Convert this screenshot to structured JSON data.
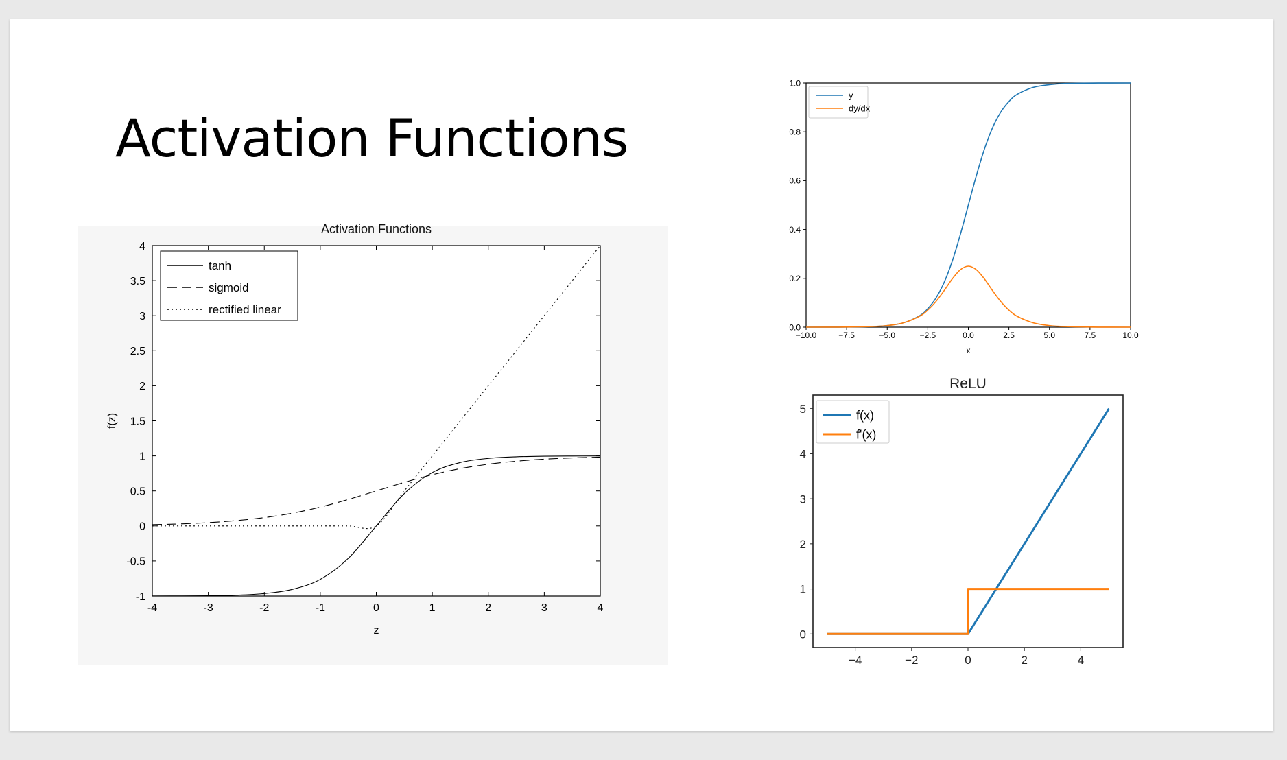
{
  "slide": {
    "title": "Activation Functions"
  },
  "chart_data": [
    {
      "type": "line",
      "title": "Activation Functions",
      "xlabel": "z",
      "ylabel": "f(z)",
      "xlim": [
        -4,
        4
      ],
      "ylim": [
        -1,
        4
      ],
      "xticks": [
        -4,
        -3,
        -2,
        -1,
        0,
        1,
        2,
        3,
        4
      ],
      "yticks": [
        -1,
        -0.5,
        0,
        0.5,
        1,
        1.5,
        2,
        2.5,
        3,
        3.5,
        4
      ],
      "ytick_labels": [
        "-1",
        "-0.5",
        "0",
        "0.5",
        "1",
        "1.5",
        "2",
        "2.5",
        "3",
        "3.5",
        "4"
      ],
      "legend_position": "top-left",
      "grid": false,
      "x": [
        -4,
        -3.5,
        -3,
        -2.5,
        -2,
        -1.5,
        -1,
        -0.5,
        0,
        0.5,
        1,
        1.5,
        2,
        2.5,
        3,
        3.5,
        4
      ],
      "series": [
        {
          "name": "tanh",
          "style": "solid",
          "color": "#000000",
          "values": [
            -0.999,
            -0.998,
            -0.995,
            -0.987,
            -0.964,
            -0.905,
            -0.762,
            -0.462,
            0,
            0.462,
            0.762,
            0.905,
            0.964,
            0.987,
            0.995,
            0.998,
            0.999
          ]
        },
        {
          "name": "sigmoid",
          "style": "dashed",
          "color": "#000000",
          "values": [
            0.018,
            0.029,
            0.047,
            0.076,
            0.119,
            0.182,
            0.269,
            0.378,
            0.5,
            0.622,
            0.731,
            0.818,
            0.881,
            0.924,
            0.953,
            0.971,
            0.982
          ]
        },
        {
          "name": "rectified linear",
          "style": "dotted",
          "color": "#000000",
          "values": [
            0,
            0,
            0,
            0,
            0,
            0,
            0,
            0,
            0,
            0.5,
            1,
            1.5,
            2,
            2.5,
            3,
            3.5,
            4
          ]
        }
      ]
    },
    {
      "type": "line",
      "title": "",
      "xlabel": "x",
      "ylabel": "",
      "xlim": [
        -10,
        10
      ],
      "ylim": [
        0,
        1
      ],
      "xticks": [
        -10,
        -7.5,
        -5,
        -2.5,
        0,
        2.5,
        5,
        7.5,
        10
      ],
      "xtick_labels": [
        "−10.0",
        "−7.5",
        "−5.0",
        "−2.5",
        "0.0",
        "2.5",
        "5.0",
        "7.5",
        "10.0"
      ],
      "yticks": [
        0,
        0.2,
        0.4,
        0.6,
        0.8,
        1
      ],
      "ytick_labels": [
        "0.0",
        "0.2",
        "0.4",
        "0.6",
        "0.8",
        "1.0"
      ],
      "legend_position": "top-left",
      "grid": false,
      "x": [
        -10,
        -8,
        -6,
        -5,
        -4,
        -3,
        -2.5,
        -2,
        -1.5,
        -1,
        -0.5,
        0,
        0.5,
        1,
        1.5,
        2,
        2.5,
        3,
        4,
        5,
        6,
        8,
        10
      ],
      "series": [
        {
          "name": "y",
          "color": "#1f77b4",
          "values": [
            0.0,
            0.0003,
            0.0025,
            0.0067,
            0.018,
            0.047,
            0.076,
            0.119,
            0.182,
            0.269,
            0.378,
            0.5,
            0.622,
            0.731,
            0.818,
            0.881,
            0.924,
            0.953,
            0.982,
            0.993,
            0.998,
            0.9997,
            1.0
          ]
        },
        {
          "name": "dy/dx",
          "color": "#ff7f0e",
          "values": [
            0.0,
            0.0003,
            0.0025,
            0.0066,
            0.018,
            0.045,
            0.07,
            0.105,
            0.149,
            0.197,
            0.235,
            0.25,
            0.235,
            0.197,
            0.149,
            0.105,
            0.07,
            0.045,
            0.018,
            0.0066,
            0.0025,
            0.0003,
            0.0
          ]
        }
      ]
    },
    {
      "type": "line",
      "title": "ReLU",
      "xlabel": "",
      "ylabel": "",
      "xlim": [
        -5.5,
        5.5
      ],
      "ylim": [
        -0.3,
        5.3
      ],
      "xticks": [
        -4,
        -2,
        0,
        2,
        4
      ],
      "xtick_labels": [
        "−4",
        "−2",
        "0",
        "2",
        "4"
      ],
      "yticks": [
        0,
        1,
        2,
        3,
        4,
        5
      ],
      "ytick_labels": [
        "0",
        "1",
        "2",
        "3",
        "4",
        "5"
      ],
      "legend_position": "top-left",
      "grid": false,
      "series": [
        {
          "name": "f(x)",
          "color": "#1f77b4",
          "x": [
            -5,
            0,
            5
          ],
          "values": [
            0,
            0,
            5
          ]
        },
        {
          "name": "f'(x)",
          "color": "#ff7f0e",
          "x": [
            -5,
            0,
            0,
            5
          ],
          "values": [
            0,
            0,
            1,
            1
          ]
        }
      ]
    }
  ]
}
